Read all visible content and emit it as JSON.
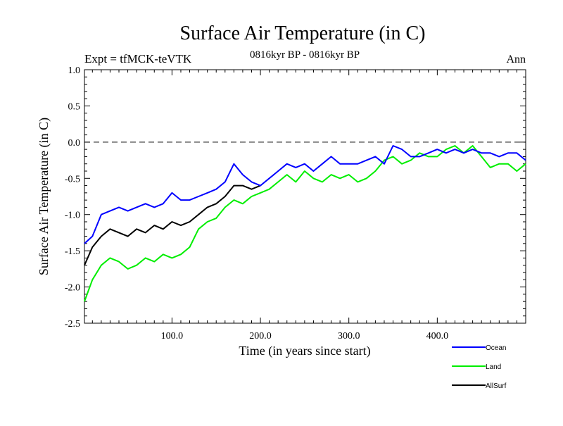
{
  "chart_data": {
    "type": "line",
    "title": "Surface Air Temperature (in C)",
    "subtitle": "0816kyr BP - 0816kyr BP",
    "experiment": "Expt = tfMCK-teVTK",
    "season": "Ann",
    "xlabel": "Time (in years since start)",
    "ylabel": "Surface Air Temperature (in C)",
    "xlim": [
      1,
      500
    ],
    "ylim": [
      -2.5,
      1.0
    ],
    "xticks": [
      100,
      200,
      300,
      400
    ],
    "xtick_labels": [
      "100.0",
      "200.0",
      "300.0",
      "400.0"
    ],
    "yticks": [
      -2.5,
      -2.0,
      -1.5,
      -1.0,
      -0.5,
      0.0,
      0.5,
      1.0
    ],
    "ytick_labels": [
      "-2.5",
      "-2.0",
      "-1.5",
      "-1.0",
      "-0.5",
      "0.0",
      "0.5",
      "1.0"
    ],
    "reference_line": 0.0,
    "series": [
      {
        "name": "Ocean",
        "color": "#0000ff",
        "x": [
          1,
          10,
          20,
          30,
          40,
          50,
          60,
          70,
          80,
          90,
          100,
          110,
          120,
          130,
          140,
          150,
          160,
          170,
          180,
          190,
          200,
          210,
          220,
          230,
          240,
          250,
          260,
          270,
          280,
          290,
          300,
          310,
          320,
          330,
          340,
          350,
          360,
          370,
          380,
          390,
          400,
          410,
          420,
          430,
          440,
          450,
          460,
          470,
          480,
          490,
          500
        ],
        "values": [
          -1.4,
          -1.3,
          -1.0,
          -0.95,
          -0.9,
          -0.95,
          -0.9,
          -0.85,
          -0.9,
          -0.85,
          -0.7,
          -0.8,
          -0.8,
          -0.75,
          -0.7,
          -0.65,
          -0.55,
          -0.3,
          -0.45,
          -0.55,
          -0.6,
          -0.5,
          -0.4,
          -0.3,
          -0.35,
          -0.3,
          -0.4,
          -0.3,
          -0.2,
          -0.3,
          -0.3,
          -0.3,
          -0.25,
          -0.2,
          -0.3,
          -0.05,
          -0.1,
          -0.2,
          -0.2,
          -0.15,
          -0.1,
          -0.15,
          -0.1,
          -0.15,
          -0.1,
          -0.15,
          -0.15,
          -0.2,
          -0.15,
          -0.15,
          -0.25
        ]
      },
      {
        "name": "Land",
        "color": "#00ee00",
        "x": [
          1,
          10,
          20,
          30,
          40,
          50,
          60,
          70,
          80,
          90,
          100,
          110,
          120,
          130,
          140,
          150,
          160,
          170,
          180,
          190,
          200,
          210,
          220,
          230,
          240,
          250,
          260,
          270,
          280,
          290,
          300,
          310,
          320,
          330,
          340,
          350,
          360,
          370,
          380,
          390,
          400,
          410,
          420,
          430,
          440,
          450,
          460,
          470,
          480,
          490,
          500
        ],
        "values": [
          -2.2,
          -1.9,
          -1.7,
          -1.6,
          -1.65,
          -1.75,
          -1.7,
          -1.6,
          -1.65,
          -1.55,
          -1.6,
          -1.55,
          -1.45,
          -1.2,
          -1.1,
          -1.05,
          -0.9,
          -0.8,
          -0.85,
          -0.75,
          -0.7,
          -0.65,
          -0.55,
          -0.45,
          -0.55,
          -0.4,
          -0.5,
          -0.55,
          -0.45,
          -0.5,
          -0.45,
          -0.55,
          -0.5,
          -0.4,
          -0.25,
          -0.2,
          -0.3,
          -0.25,
          -0.15,
          -0.2,
          -0.2,
          -0.1,
          -0.05,
          -0.15,
          -0.05,
          -0.2,
          -0.35,
          -0.3,
          -0.3,
          -0.4,
          -0.3
        ]
      },
      {
        "name": "AllSurf",
        "color": "#000000",
        "x": [
          1,
          10,
          20,
          30,
          40,
          50,
          60,
          70,
          80,
          90,
          100,
          110,
          120,
          130,
          140,
          150,
          160,
          170,
          180,
          190,
          200
        ],
        "values": [
          -1.7,
          -1.45,
          -1.3,
          -1.2,
          -1.25,
          -1.3,
          -1.2,
          -1.25,
          -1.15,
          -1.2,
          -1.1,
          -1.15,
          -1.1,
          -1.0,
          -0.9,
          -0.85,
          -0.75,
          -0.6,
          -0.6,
          -0.65,
          -0.6
        ]
      }
    ]
  }
}
